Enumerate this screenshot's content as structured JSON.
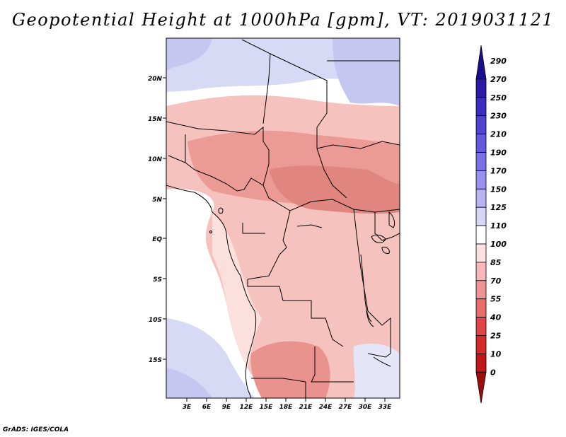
{
  "title": "Geopotential Height at 1000hPa [gpm], VT: 2019031121",
  "footer": "GrADS: IGES/COLA",
  "map": {
    "type": "filled-contour-map",
    "variable": "Geopotential Height at 1000hPa",
    "units": "gpm",
    "valid_time": "2019031121",
    "region": "Central Africa",
    "lon_range": [
      0,
      35
    ],
    "lat_range": [
      -20,
      24
    ],
    "x_tick_labels": [
      "3E",
      "6E",
      "9E",
      "12E",
      "15E",
      "18E",
      "21E",
      "24E",
      "27E",
      "30E",
      "33E"
    ],
    "y_tick_labels": [
      "20N",
      "15N",
      "10N",
      "5N",
      "EQ",
      "5S",
      "10S",
      "15S"
    ]
  },
  "colorbar": {
    "levels": [
      "290",
      "270",
      "250",
      "230",
      "210",
      "190",
      "170",
      "150",
      "125",
      "110",
      "100",
      "85",
      "70",
      "55",
      "40",
      "25",
      "10",
      "0"
    ],
    "colors": [
      "#1a0f8c",
      "#2a1aa6",
      "#3b2dbd",
      "#4f44d0",
      "#6458dc",
      "#7a70e6",
      "#9890ee",
      "#b8b4f4",
      "#d6d6f7",
      "#ffffff",
      "#fde0e0",
      "#f6b8b8",
      "#ef9494",
      "#e86b6b",
      "#e04444",
      "#d52a2a",
      "#c01818",
      "#9e0c0c"
    ]
  },
  "colors": {
    "land_warm": "#f4b6b2",
    "land_hot": "#e88f8a",
    "cool": "#d8daf5",
    "ocean": "#ffffff"
  }
}
